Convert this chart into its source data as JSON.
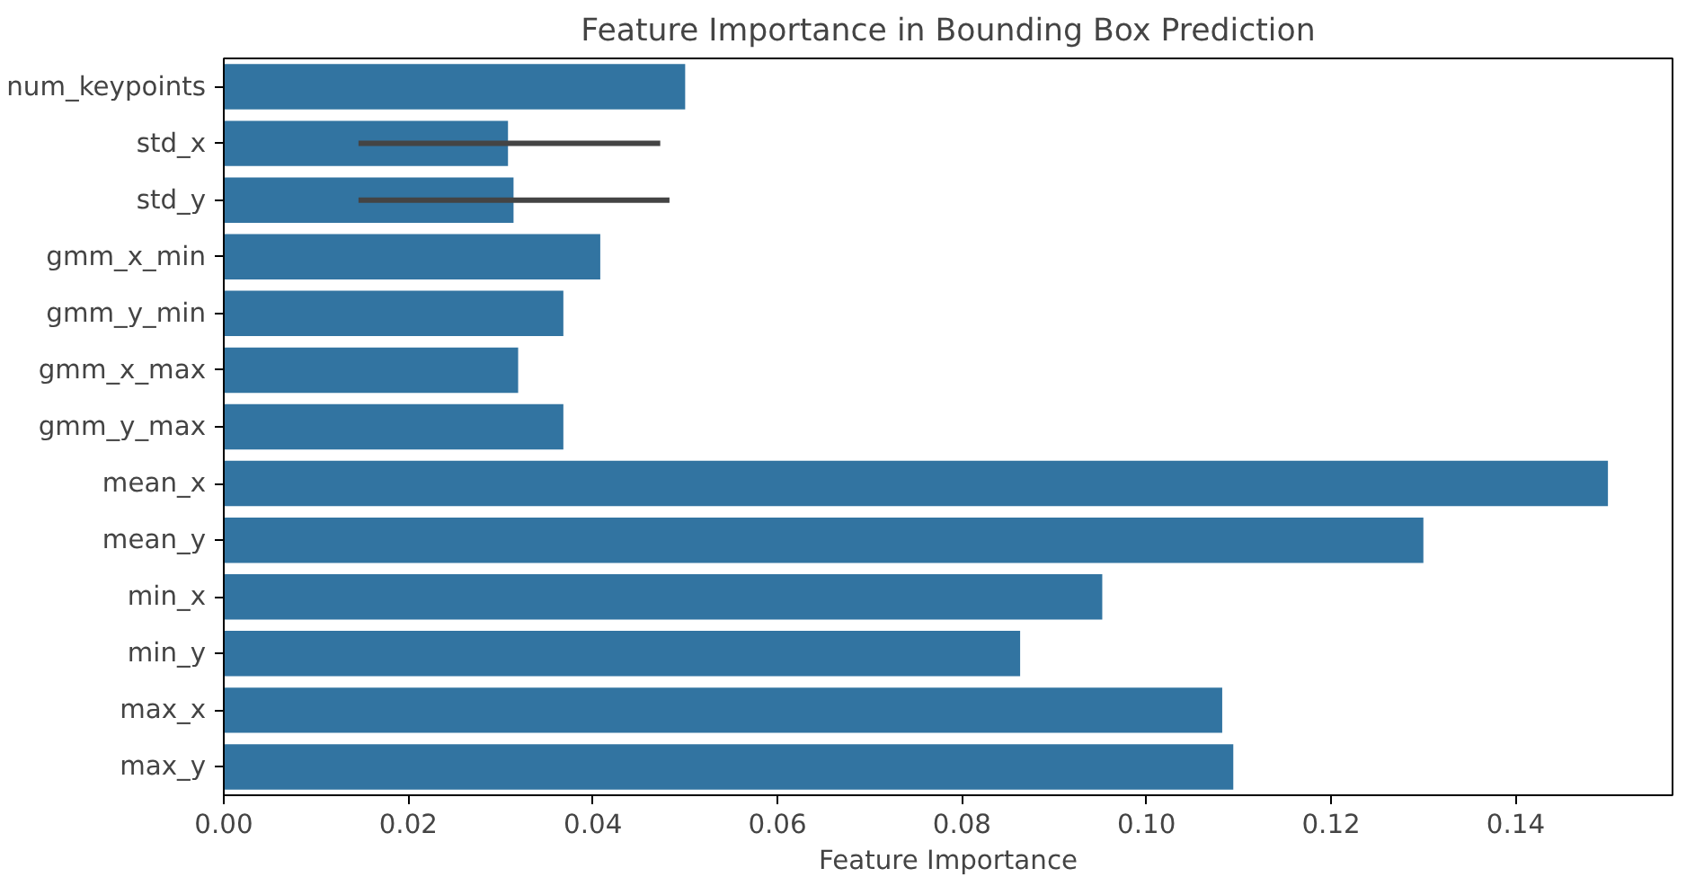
{
  "chart_data": {
    "type": "bar",
    "orientation": "horizontal",
    "title": "Feature Importance in Bounding Box Prediction",
    "xlabel": "Feature Importance",
    "categories": [
      "num_keypoints",
      "std_x",
      "std_y",
      "gmm_x_min",
      "gmm_y_min",
      "gmm_x_max",
      "gmm_y_max",
      "mean_x",
      "mean_y",
      "min_x",
      "min_y",
      "max_x",
      "max_y"
    ],
    "values": [
      0.05,
      0.0308,
      0.0314,
      0.0408,
      0.0368,
      0.0319,
      0.0368,
      0.15,
      0.13,
      0.0952,
      0.0863,
      0.1082,
      0.1094
    ],
    "errors": [
      null,
      [
        0.0146,
        0.0473
      ],
      [
        0.0146,
        0.0483
      ],
      null,
      null,
      null,
      null,
      null,
      null,
      null,
      null,
      null,
      null
    ],
    "color": "#3274a1",
    "xlim": [
      0,
      0.157
    ],
    "xticks": [
      {
        "value": 0,
        "label": "0.00"
      },
      {
        "value": 0.02,
        "label": "0.02"
      },
      {
        "value": 0.04,
        "label": "0.04"
      },
      {
        "value": 0.06,
        "label": "0.06"
      },
      {
        "value": 0.08,
        "label": "0.08"
      },
      {
        "value": 0.1,
        "label": "0.10"
      },
      {
        "value": 0.12,
        "label": "0.12"
      },
      {
        "value": 0.14,
        "label": "0.14"
      }
    ],
    "grid": false
  }
}
